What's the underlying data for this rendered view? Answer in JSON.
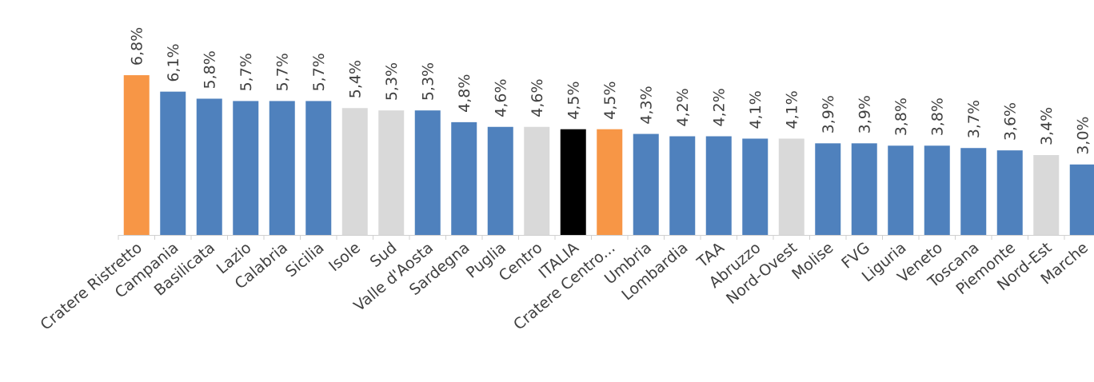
{
  "chart_data": {
    "type": "bar",
    "title": "",
    "xlabel": "",
    "ylabel": "",
    "ylim": [
      0,
      7
    ],
    "grid": false,
    "legend": "none",
    "colors": {
      "blue": "#4f81bd",
      "orange": "#f79646",
      "gray": "#d9d9d9",
      "black": "#000000"
    },
    "categories": [
      "Cratere Ristretto",
      "Campania",
      "Basilicata",
      "Lazio",
      "Calabria",
      "Sicilia",
      "Isole",
      "Sud",
      "Valle d'Aosta",
      "Sardegna",
      "Puglia",
      "Centro",
      "ITALIA",
      "Cratere Centro...",
      "Umbria",
      "Lombardia",
      "TAA",
      "Abruzzo",
      "Nord-Ovest",
      "Molise",
      "FVG",
      "Liguria",
      "Veneto",
      "Toscana",
      "Piemonte",
      "Nord-Est",
      "Marche"
    ],
    "values": [
      6.8,
      6.1,
      5.8,
      5.7,
      5.7,
      5.7,
      5.4,
      5.3,
      5.3,
      4.8,
      4.6,
      4.6,
      4.5,
      4.5,
      4.3,
      4.2,
      4.2,
      4.1,
      4.1,
      3.9,
      3.9,
      3.8,
      3.8,
      3.7,
      3.6,
      3.4,
      3.0
    ],
    "labels": [
      "6,8%",
      "6,1%",
      "5,8%",
      "5,7%",
      "5,7%",
      "5,7%",
      "5,4%",
      "5,3%",
      "5,3%",
      "4,8%",
      "4,6%",
      "4,6%",
      "4,5%",
      "4,5%",
      "4,3%",
      "4,2%",
      "4,2%",
      "4,1%",
      "4,1%",
      "3,9%",
      "3,9%",
      "3,8%",
      "3,8%",
      "3,7%",
      "3,6%",
      "3,4%",
      "3,0%"
    ],
    "bar_colors": [
      "orange",
      "blue",
      "blue",
      "blue",
      "blue",
      "blue",
      "gray",
      "gray",
      "blue",
      "blue",
      "blue",
      "gray",
      "black",
      "orange",
      "blue",
      "blue",
      "blue",
      "blue",
      "gray",
      "blue",
      "blue",
      "blue",
      "blue",
      "blue",
      "blue",
      "gray",
      "blue"
    ]
  }
}
